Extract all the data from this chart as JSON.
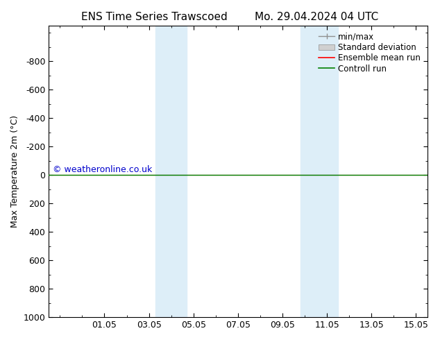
{
  "title_left": "ENS Time Series Trawscoed",
  "title_right": "Mo. 29.04.2024 04 UTC",
  "ylabel": "Max Temperature 2m (°C)",
  "ylim_bottom": 1000,
  "ylim_top": -1050,
  "yticks": [
    1000,
    800,
    600,
    400,
    200,
    0,
    -200,
    -400,
    -600,
    -800
  ],
  "xlim": [
    -0.5,
    16.5
  ],
  "xtick_labels": [
    "01.05",
    "03.05",
    "05.05",
    "07.05",
    "09.05",
    "11.05",
    "13.05",
    "15.05"
  ],
  "xtick_positions": [
    2,
    4,
    6,
    8,
    10,
    12,
    14,
    16
  ],
  "shaded_bands": [
    {
      "x_start": 4.3,
      "x_end": 5.7
    },
    {
      "x_start": 10.8,
      "x_end": 12.5
    }
  ],
  "shade_color": "#ddeef8",
  "control_run_y": 0,
  "control_run_color": "#008000",
  "ensemble_mean_color": "#ff0000",
  "std_dev_color": "#d0d0d0",
  "minmax_color": "#909090",
  "watermark": "© weatheronline.co.uk",
  "watermark_color": "#0000cc",
  "legend_entries": [
    "min/max",
    "Standard deviation",
    "Ensemble mean run",
    "Controll run"
  ],
  "legend_colors": [
    "#909090",
    "#d0d0d0",
    "#ff0000",
    "#008000"
  ],
  "background_color": "#ffffff",
  "title_fontsize": 11,
  "axis_label_fontsize": 9,
  "tick_fontsize": 9,
  "legend_fontsize": 8.5
}
